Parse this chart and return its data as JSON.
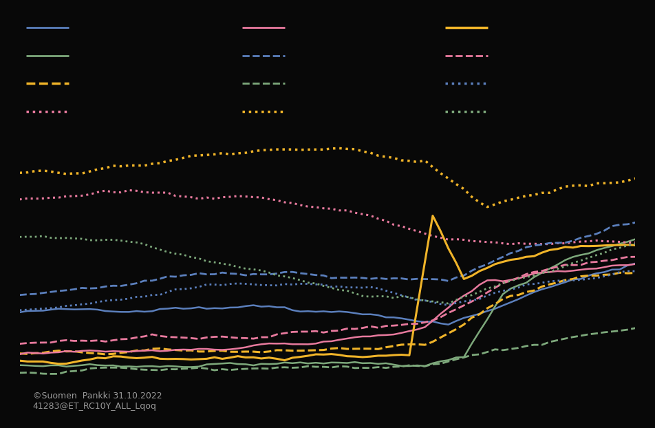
{
  "background_color": "#080808",
  "text_color": "#999999",
  "watermark_line1": "©Suomen  Pankki 31.10.2022",
  "watermark_line2": "41283@ET_RC10Y_ALL_Lqoq",
  "legend": [
    {
      "color": "#5b7fbc",
      "ls": "solid",
      "lw": 2.0
    },
    {
      "color": "#7da87b",
      "ls": "solid",
      "lw": 2.0
    },
    {
      "color": "#f0b429",
      "ls": "dashed",
      "lw": 2.5
    },
    {
      "color": "#e87a9e",
      "ls": "dotted",
      "lw": 2.5
    },
    {
      "color": "#e87a9e",
      "ls": "solid",
      "lw": 2.0
    },
    {
      "color": "#5b7fbc",
      "ls": "dashed",
      "lw": 2.0
    },
    {
      "color": "#7da87b",
      "ls": "dashed",
      "lw": 2.0
    },
    {
      "color": "#f0b429",
      "ls": "dotted",
      "lw": 2.5
    },
    {
      "color": "#f0b429",
      "ls": "solid",
      "lw": 2.5
    },
    {
      "color": "#e87a9e",
      "ls": "dashed",
      "lw": 2.0
    },
    {
      "color": "#5b7fbc",
      "ls": "dotted",
      "lw": 2.5
    },
    {
      "color": "#7da87b",
      "ls": "dotted",
      "lw": 2.5
    }
  ],
  "lines": [
    {
      "color": "#5b7fbc",
      "ls": "solid",
      "lw": 1.8,
      "knots_x": [
        0,
        15,
        30,
        45,
        55,
        65,
        79
      ],
      "knots_y": [
        2.4,
        2.5,
        2.55,
        2.4,
        2.15,
        2.75,
        3.45
      ]
    },
    {
      "color": "#7da87b",
      "ls": "solid",
      "lw": 1.8,
      "knots_x": [
        0,
        40,
        52,
        57,
        62,
        70,
        79
      ],
      "knots_y": [
        1.3,
        1.35,
        1.35,
        1.5,
        2.8,
        3.5,
        3.9
      ]
    },
    {
      "color": "#f0b429",
      "ls": "dashed",
      "lw": 2.2,
      "knots_x": [
        0,
        20,
        40,
        52,
        62,
        70,
        79
      ],
      "knots_y": [
        1.55,
        1.6,
        1.65,
        1.65,
        2.7,
        3.1,
        3.25
      ]
    },
    {
      "color": "#e87a9e",
      "ls": "dotted",
      "lw": 2.2,
      "knots_x": [
        0,
        15,
        30,
        45,
        55,
        65,
        79
      ],
      "knots_y": [
        4.75,
        4.9,
        4.8,
        4.4,
        3.9,
        3.8,
        3.85
      ]
    },
    {
      "color": "#e87a9e",
      "ls": "solid",
      "lw": 1.8,
      "knots_x": [
        0,
        20,
        40,
        52,
        60,
        70,
        79
      ],
      "knots_y": [
        1.55,
        1.65,
        1.8,
        2.05,
        3.1,
        3.25,
        3.4
      ]
    },
    {
      "color": "#5b7fbc",
      "ls": "dashed",
      "lw": 2.0,
      "knots_x": [
        0,
        15,
        30,
        45,
        55,
        65,
        79
      ],
      "knots_y": [
        2.8,
        3.0,
        3.25,
        3.15,
        3.1,
        3.75,
        4.2
      ]
    },
    {
      "color": "#7da87b",
      "ls": "dashed",
      "lw": 2.0,
      "knots_x": [
        0,
        20,
        40,
        52,
        62,
        79
      ],
      "knots_y": [
        1.2,
        1.25,
        1.3,
        1.35,
        1.65,
        2.1
      ]
    },
    {
      "color": "#f0b429",
      "ls": "dotted",
      "lw": 2.5,
      "knots_x": [
        0,
        15,
        30,
        40,
        52,
        60,
        70,
        79
      ],
      "knots_y": [
        5.25,
        5.45,
        5.75,
        5.8,
        5.5,
        4.55,
        5.0,
        5.2
      ]
    },
    {
      "color": "#f0b429",
      "ls": "solid",
      "lw": 2.2,
      "knots_x": [
        0,
        30,
        50,
        53,
        57,
        62,
        70,
        79
      ],
      "knots_y": [
        1.4,
        1.5,
        1.52,
        4.4,
        3.1,
        3.5,
        3.75,
        3.8
      ]
    },
    {
      "color": "#e87a9e",
      "ls": "dashed",
      "lw": 2.0,
      "knots_x": [
        0,
        20,
        40,
        52,
        62,
        70,
        79
      ],
      "knots_y": [
        1.8,
        1.9,
        2.0,
        2.15,
        3.0,
        3.4,
        3.55
      ]
    },
    {
      "color": "#5b7fbc",
      "ls": "dotted",
      "lw": 2.0,
      "knots_x": [
        0,
        15,
        30,
        45,
        55,
        65,
        79
      ],
      "knots_y": [
        2.45,
        2.7,
        3.05,
        2.9,
        2.55,
        2.95,
        3.25
      ]
    },
    {
      "color": "#7da87b",
      "ls": "dotted",
      "lw": 2.0,
      "knots_x": [
        0,
        15,
        30,
        45,
        55,
        65,
        79
      ],
      "knots_y": [
        3.95,
        3.8,
        3.25,
        2.75,
        2.65,
        3.15,
        3.8
      ]
    }
  ]
}
